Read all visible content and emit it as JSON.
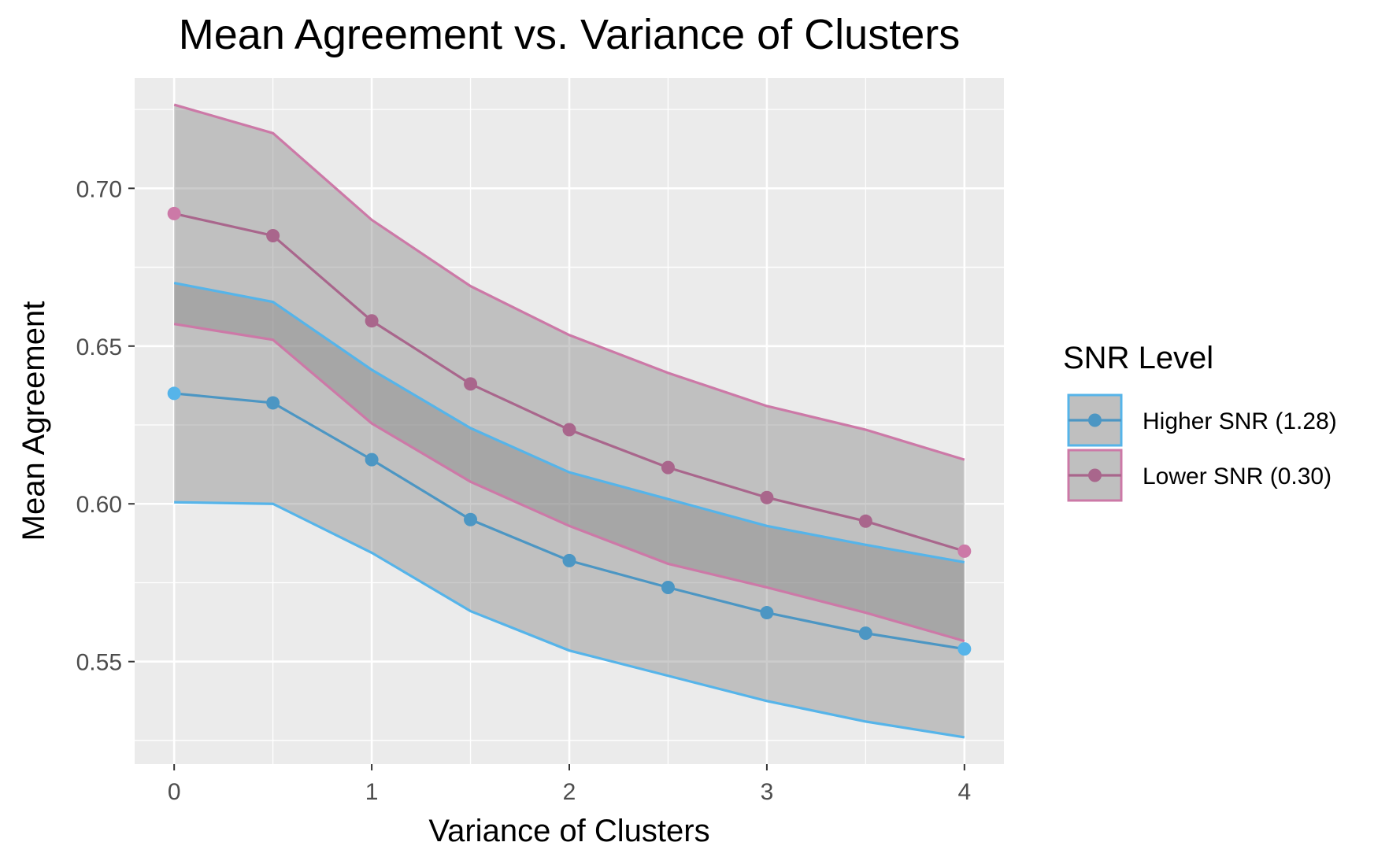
{
  "chart_data": {
    "type": "line",
    "title": "Mean Agreement vs. Variance of Clusters",
    "xlabel": "Variance of Clusters",
    "ylabel": "Mean Agreement",
    "x": [
      0,
      0.5,
      1,
      1.5,
      2,
      2.5,
      3,
      3.5,
      4
    ],
    "xlim": [
      -0.2,
      4.2
    ],
    "ylim": [
      0.5175,
      0.735
    ],
    "xticks": [
      0,
      1,
      2,
      3,
      4
    ],
    "xtick_labels": [
      "0",
      "1",
      "2",
      "3",
      "4"
    ],
    "yticks": [
      0.55,
      0.6,
      0.65,
      0.7
    ],
    "ytick_labels": [
      "0.55",
      "0.60",
      "0.65",
      "0.70"
    ],
    "grid": true,
    "legend": {
      "title": "SNR Level",
      "position": "right"
    },
    "series": [
      {
        "name": "Higher SNR (1.28)",
        "color": "#56B4E9",
        "line_color": "#4C96C3",
        "values": [
          0.635,
          0.632,
          0.614,
          0.595,
          0.582,
          0.5735,
          0.5655,
          0.559,
          0.554
        ],
        "lower": [
          0.6005,
          0.6,
          0.5845,
          0.566,
          0.5535,
          0.5455,
          0.5375,
          0.531,
          0.526
        ],
        "upper": [
          0.67,
          0.664,
          0.6425,
          0.624,
          0.61,
          0.6015,
          0.593,
          0.587,
          0.5815
        ]
      },
      {
        "name": "Lower SNR (0.30)",
        "color": "#CC79A7",
        "line_color": "#A9668C",
        "values": [
          0.692,
          0.685,
          0.658,
          0.638,
          0.6235,
          0.6115,
          0.602,
          0.5945,
          0.585
        ],
        "lower": [
          0.657,
          0.652,
          0.6255,
          0.607,
          0.593,
          0.581,
          0.5735,
          0.5655,
          0.5565
        ],
        "upper": [
          0.7265,
          0.7175,
          0.69,
          0.669,
          0.6535,
          0.6415,
          0.631,
          0.6235,
          0.614
        ]
      }
    ]
  }
}
